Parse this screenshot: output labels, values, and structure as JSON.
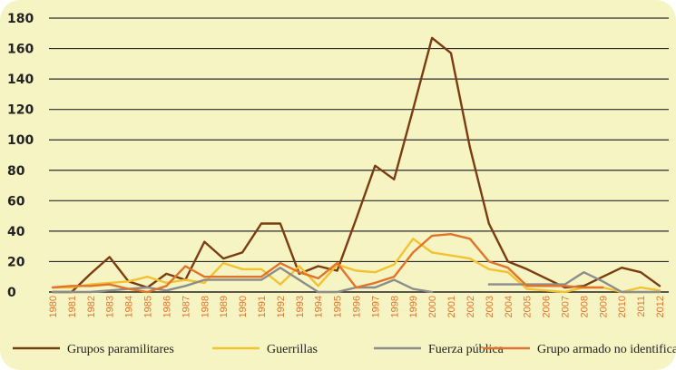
{
  "chart_data": {
    "type": "line",
    "title": "",
    "xlabel": "",
    "ylabel": "",
    "x": [
      "1980",
      "1981",
      "1982",
      "1983",
      "1984",
      "1985",
      "1986",
      "1987",
      "1988",
      "1989",
      "1990",
      "1991",
      "1992",
      "1993",
      "1994",
      "1995",
      "1996",
      "1997",
      "1998",
      "1999",
      "2000",
      "2001",
      "2002",
      "2003",
      "2004",
      "2005",
      "2006",
      "2007",
      "2008",
      "2009",
      "2010",
      "2011",
      "2012"
    ],
    "y_ticks": [
      0,
      20,
      40,
      60,
      80,
      100,
      120,
      140,
      160,
      180
    ],
    "ylim": [
      0,
      180
    ],
    "grid": "horizontal",
    "legend_position": "bottom",
    "series": [
      {
        "name": "Grupos paramilitares",
        "color": "#7a3d12",
        "values": [
          0,
          0,
          12,
          23,
          7,
          3,
          12,
          8,
          33,
          22,
          26,
          45,
          45,
          12,
          17,
          14,
          48,
          83,
          74,
          120,
          167,
          157,
          95,
          45,
          20,
          15,
          9,
          3,
          4,
          10,
          16,
          13,
          4
        ]
      },
      {
        "name": "Guerrillas",
        "color": "#f2c232",
        "values": [
          3,
          3,
          5,
          6,
          7,
          10,
          6,
          8,
          6,
          19,
          15,
          15,
          5,
          17,
          4,
          18,
          14,
          13,
          18,
          35,
          26,
          24,
          22,
          15,
          13,
          2,
          1,
          0,
          3,
          3,
          0,
          3,
          1
        ]
      },
      {
        "name": "Fuerza pública",
        "color": "#8c8c8c",
        "values": [
          0,
          0,
          0,
          1,
          2,
          3,
          1,
          4,
          8,
          8,
          8,
          8,
          16,
          8,
          0,
          0,
          3,
          3,
          8,
          2,
          0,
          null,
          null,
          5,
          5,
          5,
          5,
          5,
          13,
          7,
          0,
          0,
          0
        ]
      },
      {
        "name": "Grupo armado no identificado",
        "color": "#e0742c",
        "values": [
          3,
          4,
          4,
          5,
          2,
          0,
          4,
          17,
          10,
          10,
          10,
          10,
          19,
          13,
          9,
          19,
          3,
          6,
          10,
          26,
          37,
          38,
          35,
          20,
          16,
          4,
          4,
          4,
          3,
          3,
          null,
          null,
          null
        ]
      }
    ]
  }
}
